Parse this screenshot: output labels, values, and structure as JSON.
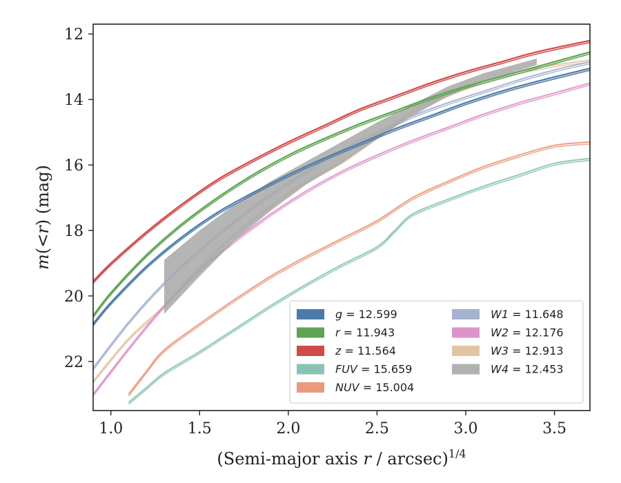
{
  "chart_data": {
    "type": "line",
    "xlabel_main": "(Semi-major axis ",
    "xlabel_var": "r",
    "xlabel_tail": " / arcsec)",
    "xlabel_sup": "1/4",
    "ylabel_a": "m",
    "ylabel_b": "(<",
    "ylabel_c": "r",
    "ylabel_d": ") (mag)",
    "xlim": [
      0.9,
      3.7
    ],
    "ylim": [
      23.5,
      11.7
    ],
    "y_inverted": true,
    "xticks": [
      1.0,
      1.5,
      2.0,
      2.5,
      3.0,
      3.5
    ],
    "xtick_labels": [
      "1.0",
      "1.5",
      "2.0",
      "2.5",
      "3.0",
      "3.5"
    ],
    "yticks": [
      12,
      14,
      16,
      18,
      20,
      22
    ],
    "ytick_labels": [
      "12",
      "14",
      "16",
      "18",
      "20",
      "22"
    ],
    "grid": false,
    "legend_placement": "lower-right",
    "series": [
      {
        "band": "g",
        "value_label": "= 12.599",
        "color": "#4c7ba8",
        "opacity": 1.0,
        "width": 2.2,
        "x": [
          0.9,
          1.0,
          1.2,
          1.4,
          1.6,
          1.8,
          2.0,
          2.2,
          2.4,
          2.6,
          2.8,
          3.0,
          3.2,
          3.4,
          3.7
        ],
        "y": [
          20.85,
          20.2,
          19.1,
          18.2,
          17.45,
          16.85,
          16.3,
          15.8,
          15.35,
          14.9,
          14.5,
          14.1,
          13.75,
          13.45,
          13.05
        ]
      },
      {
        "band": "r",
        "value_label": "= 11.943",
        "color": "#5ea453",
        "opacity": 1.0,
        "width": 2.2,
        "x": [
          0.9,
          1.0,
          1.2,
          1.4,
          1.6,
          1.8,
          2.0,
          2.2,
          2.4,
          2.6,
          2.8,
          3.0,
          3.2,
          3.4,
          3.7
        ],
        "y": [
          20.6,
          19.9,
          18.75,
          17.8,
          17.0,
          16.3,
          15.7,
          15.2,
          14.75,
          14.35,
          13.95,
          13.6,
          13.3,
          13.0,
          12.55
        ]
      },
      {
        "band": "z",
        "value_label": "= 11.564",
        "color": "#d04a4a",
        "opacity": 1.0,
        "width": 2.2,
        "x": [
          0.9,
          1.0,
          1.2,
          1.4,
          1.6,
          1.8,
          2.0,
          2.2,
          2.4,
          2.6,
          2.8,
          3.0,
          3.2,
          3.4,
          3.7
        ],
        "y": [
          19.55,
          19.0,
          18.05,
          17.2,
          16.45,
          15.85,
          15.3,
          14.8,
          14.3,
          13.9,
          13.5,
          13.15,
          12.85,
          12.55,
          12.2
        ]
      },
      {
        "band": "FUV",
        "value_label": "= 15.659",
        "color": "#6bb5a0",
        "opacity": 0.75,
        "width": 2.0,
        "x": [
          1.1,
          1.2,
          1.3,
          1.5,
          1.7,
          1.9,
          2.1,
          2.3,
          2.5,
          2.6,
          2.7,
          2.9,
          3.1,
          3.3,
          3.5,
          3.7
        ],
        "y": [
          23.25,
          22.8,
          22.35,
          21.7,
          21.0,
          20.3,
          19.65,
          19.05,
          18.5,
          18.0,
          17.5,
          17.05,
          16.65,
          16.3,
          15.95,
          15.8
        ]
      },
      {
        "band": "NUV",
        "value_label": "= 15.004",
        "color": "#e8906e",
        "opacity": 0.85,
        "width": 2.0,
        "x": [
          1.1,
          1.2,
          1.3,
          1.5,
          1.7,
          1.9,
          2.1,
          2.3,
          2.5,
          2.7,
          2.9,
          3.1,
          3.3,
          3.5,
          3.7
        ],
        "y": [
          23.0,
          22.3,
          21.65,
          20.85,
          20.1,
          19.4,
          18.8,
          18.25,
          17.7,
          17.0,
          16.5,
          16.05,
          15.7,
          15.4,
          15.3
        ]
      },
      {
        "band": "W1",
        "value_label": "= 11.648",
        "color": "#8fa0c4",
        "opacity": 0.75,
        "width": 2.0,
        "x": [
          0.9,
          1.1,
          1.3,
          1.5,
          1.7,
          1.9,
          2.1,
          2.3,
          2.5,
          2.7,
          2.9,
          3.1,
          3.3,
          3.5,
          3.7
        ],
        "y": [
          22.2,
          20.8,
          19.6,
          18.6,
          17.7,
          16.9,
          16.2,
          15.55,
          15.0,
          14.5,
          14.1,
          13.75,
          13.4,
          13.1,
          12.85
        ]
      },
      {
        "band": "W2",
        "value_label": "= 12.176",
        "color": "#da88c4",
        "opacity": 0.85,
        "width": 2.0,
        "x": [
          0.9,
          1.1,
          1.3,
          1.5,
          1.7,
          1.9,
          2.1,
          2.3,
          2.5,
          2.7,
          2.9,
          3.1,
          3.3,
          3.5,
          3.7
        ],
        "y": [
          23.0,
          21.6,
          20.3,
          19.2,
          18.3,
          17.5,
          16.8,
          16.2,
          15.7,
          15.25,
          14.85,
          14.45,
          14.1,
          13.8,
          13.5
        ]
      },
      {
        "band": "W3",
        "value_label": "= 12.913",
        "color": "#dfc09a",
        "opacity": 0.85,
        "width": 2.0,
        "x": [
          0.9,
          1.1,
          1.3,
          1.5,
          1.7,
          1.9,
          2.1,
          2.3,
          2.5,
          2.7,
          2.9,
          3.1,
          3.3,
          3.5,
          3.7
        ],
        "y": [
          22.6,
          21.3,
          20.3,
          19.1,
          18.1,
          17.25,
          16.5,
          15.9,
          15.15,
          14.35,
          13.85,
          13.45,
          13.15,
          12.95,
          12.8
        ]
      },
      {
        "band": "W4",
        "value_label": "= 12.453",
        "color": "#a8a8a8",
        "opacity": 0.85,
        "width": 2.0,
        "band_fill": true,
        "x": [
          1.3,
          1.5,
          1.7,
          1.9,
          2.1,
          2.3,
          2.5,
          2.7,
          2.9,
          3.1,
          3.4
        ],
        "y_top": [
          18.9,
          18.0,
          17.2,
          16.5,
          15.9,
          15.3,
          14.7,
          14.15,
          13.6,
          13.2,
          12.75
        ],
        "y_bot": [
          20.55,
          19.4,
          18.3,
          17.4,
          16.6,
          15.95,
          15.2,
          14.5,
          13.9,
          13.45,
          12.95
        ]
      }
    ]
  }
}
